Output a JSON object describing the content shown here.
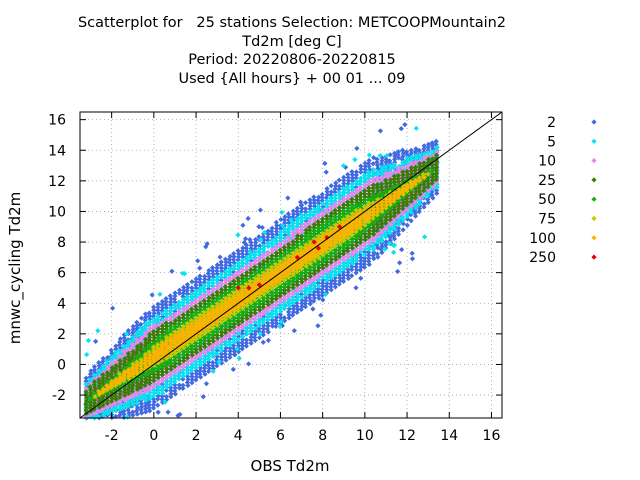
{
  "title_lines": [
    "Scatterplot for   25 stations Selection: METCOOPMountain2",
    "Td2m [deg C]",
    "Period: 20220806-20220815",
    "Used {All hours} + 00 01 ... 09"
  ],
  "chart_data": {
    "type": "scatter",
    "xlabel": "OBS Td2m",
    "ylabel": "mnwc_cycling Td2m",
    "xlim": [
      -3.5,
      16.5
    ],
    "ylim": [
      -3.5,
      16.5
    ],
    "xticks": [
      "-2",
      "0",
      "2",
      "4",
      "6",
      "8",
      "10",
      "12",
      "14",
      "16"
    ],
    "yticks": [
      "-2",
      "0",
      "2",
      "4",
      "6",
      "8",
      "10",
      "12",
      "14",
      "16"
    ],
    "grid": true,
    "diagonal_line": true,
    "legend_position": "right",
    "density_classes": [
      {
        "label": "2",
        "color": "#4169e1",
        "halfwidth": 3.4
      },
      {
        "label": "5",
        "color": "#00e5ee",
        "halfwidth": 2.6
      },
      {
        "label": "10",
        "color": "#ee82ee",
        "halfwidth": 2.0
      },
      {
        "label": "25",
        "color": "#3a7d00",
        "halfwidth": 1.6
      },
      {
        "label": "50",
        "color": "#10b010",
        "halfwidth": 1.2
      },
      {
        "label": "75",
        "color": "#c8c800",
        "halfwidth": 0.75
      },
      {
        "label": "100",
        "color": "#ffb000",
        "halfwidth": 0.45
      },
      {
        "label": "250",
        "color": "#ee0000",
        "halfwidth": 0.0
      }
    ],
    "max_density_points": [
      [
        4.0,
        5.0
      ],
      [
        4.5,
        5.0
      ],
      [
        5.0,
        5.2
      ],
      [
        6.8,
        7.0
      ],
      [
        7.6,
        8.0
      ],
      [
        8.2,
        8.3
      ],
      [
        8.8,
        9.0
      ],
      [
        7.8,
        7.6
      ]
    ]
  }
}
